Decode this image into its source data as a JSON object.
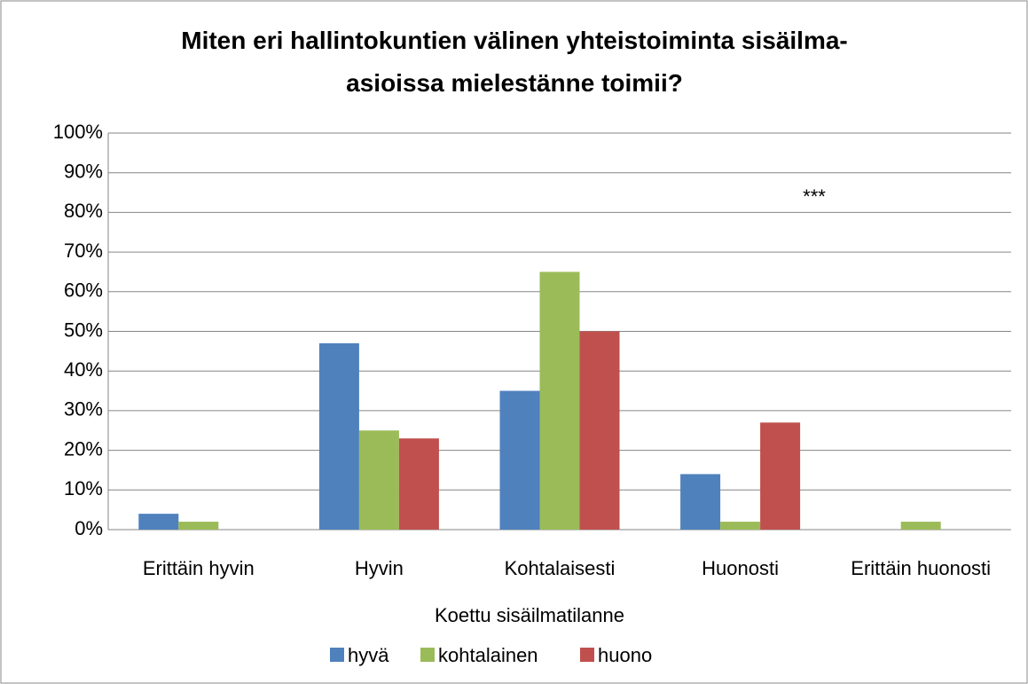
{
  "chart_data": {
    "type": "bar",
    "title": "Miten eri hallintokuntien välinen yhteistoiminta sisäilma-asioissa mielestänne toimii?",
    "categories": [
      "Erittäin hyvin",
      "Hyvin",
      "Kohtalaisesti",
      "Huonosti",
      "Erittäin huonosti"
    ],
    "series": [
      {
        "name": "hyvä",
        "color": "#4f81bd",
        "values": [
          4,
          47,
          35,
          14,
          0
        ]
      },
      {
        "name": "kohtalainen",
        "color": "#9bbb59",
        "values": [
          2,
          25,
          65,
          2,
          2
        ]
      },
      {
        "name": "huono",
        "color": "#c0504d",
        "values": [
          0,
          23,
          50,
          27,
          0
        ]
      }
    ],
    "legend_title": "Koettu sisäilmatilanne",
    "annotation": "***",
    "ylim": [
      0,
      100
    ],
    "yticks": [
      {
        "value": 0,
        "label": "0%"
      },
      {
        "value": 10,
        "label": "10%"
      },
      {
        "value": 20,
        "label": "20%"
      },
      {
        "value": 30,
        "label": "30%"
      },
      {
        "value": 40,
        "label": "40%"
      },
      {
        "value": 50,
        "label": "50%"
      },
      {
        "value": 60,
        "label": "60%"
      },
      {
        "value": 70,
        "label": "70%"
      },
      {
        "value": 80,
        "label": "80%"
      },
      {
        "value": 90,
        "label": "90%"
      },
      {
        "value": 100,
        "label": "100%"
      }
    ],
    "grid": true,
    "legend": "bottom"
  }
}
